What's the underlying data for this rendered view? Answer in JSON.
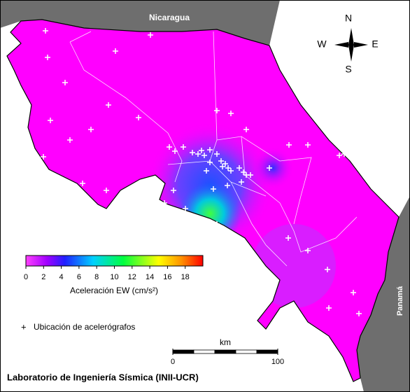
{
  "map_labels": {
    "nicaragua": "Nicaragua",
    "panama": "Panamá"
  },
  "compass": {
    "n": "N",
    "w": "W",
    "e": "E",
    "s": "S"
  },
  "colorbar": {
    "label": "Aceleración EW (cm/s²)",
    "lim": [
      0,
      20
    ],
    "ticks": [
      0,
      2,
      4,
      6,
      8,
      10,
      12,
      14,
      16,
      18
    ]
  },
  "legend": "Ubicación de acelerógrafos",
  "scalebar": {
    "unit": "km",
    "ticks": [
      0,
      100
    ]
  },
  "footer": "Laboratorio de Ingeniería Sísmica (INII-UCR)"
}
